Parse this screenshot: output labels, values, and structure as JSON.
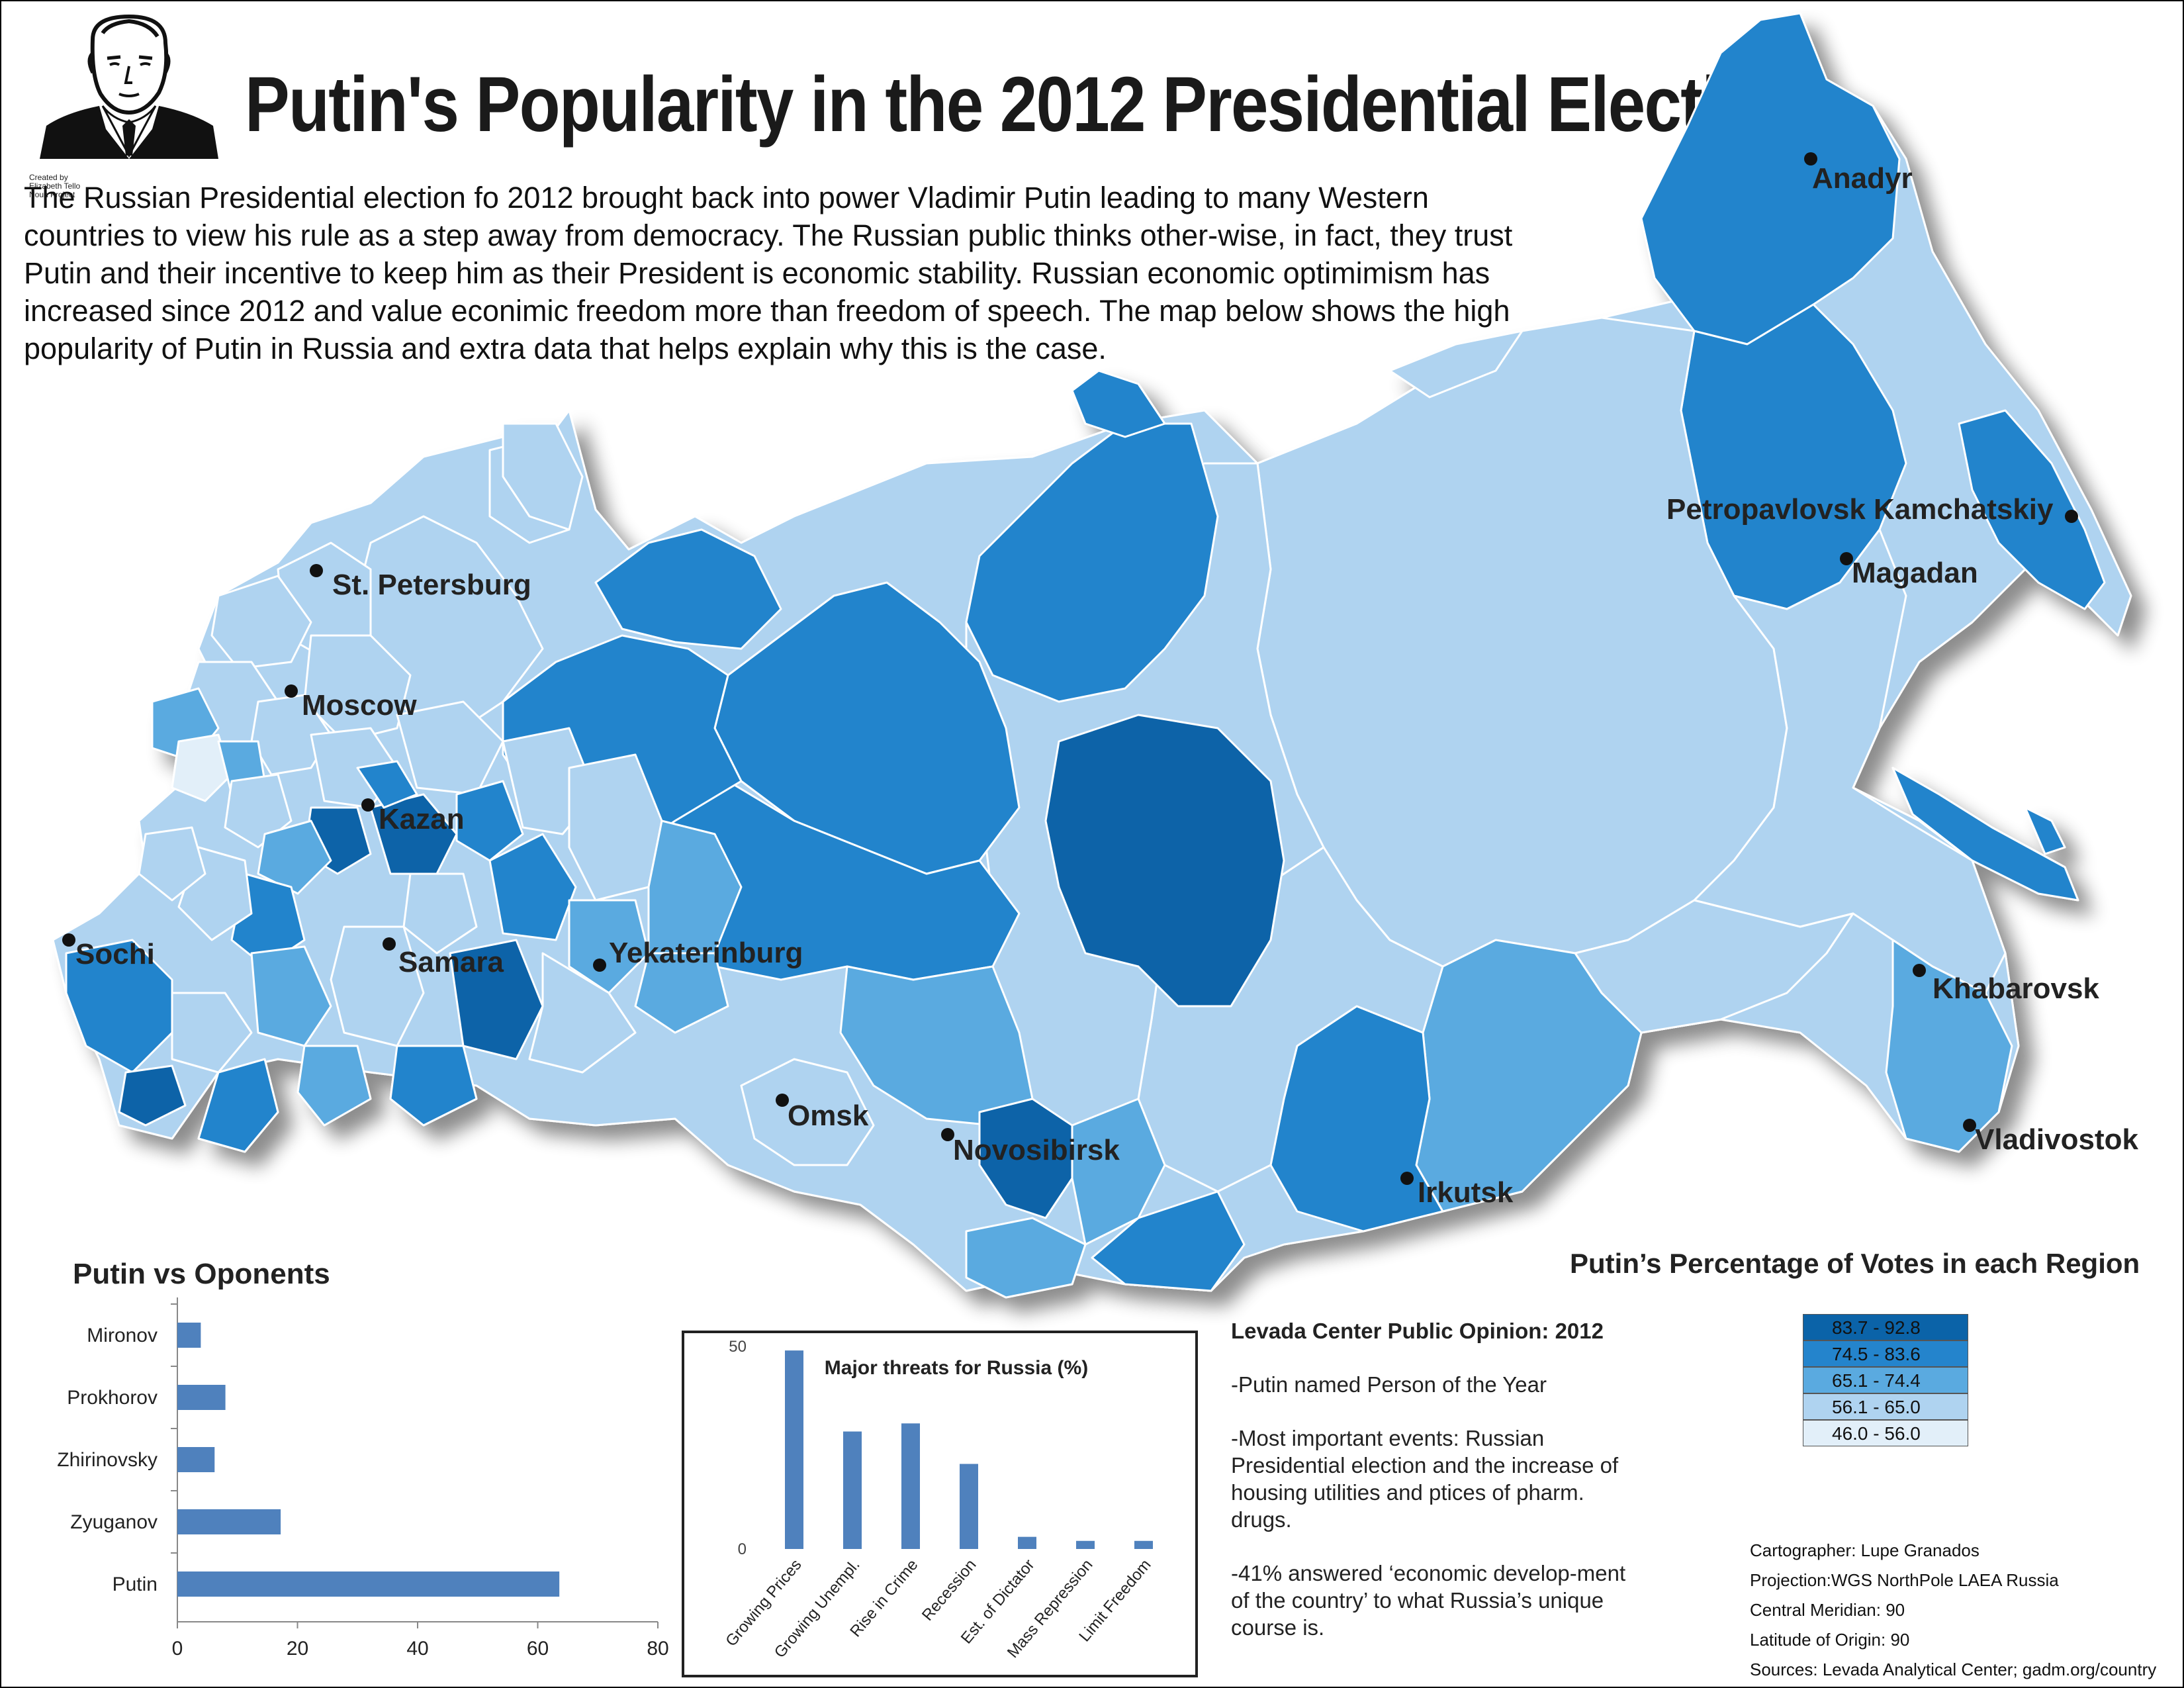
{
  "title": "Putin's Popularity in the 2012 Presidential Election",
  "credit": "Created by Elizabeth Tello Noun Project",
  "intro": "The Russian Presidential election fo 2012 brought back into power Vladimir Putin leading to many Western countries to view his rule as a step away from democracy. The Russian public thinks other-wise, in fact, they trust Putin and their incentive to keep him as their President is economic stability. Russian economic optimimism has increased since 2012 and value econimic freedom more than freedom of speech. The map below shows the high popularity of Putin in Russia and extra data that helps explain why this is the case.",
  "cities": [
    {
      "name": "St. Petersburg"
    },
    {
      "name": "Moscow"
    },
    {
      "name": "Kazan"
    },
    {
      "name": "Sochi"
    },
    {
      "name": "Samara"
    },
    {
      "name": "Yekaterinburg"
    },
    {
      "name": "Omsk"
    },
    {
      "name": "Novosibirsk"
    },
    {
      "name": "Irkutsk"
    },
    {
      "name": "Anadyr"
    },
    {
      "name": "Petropavlovsk Kamchatskiy"
    },
    {
      "name": "Magadan"
    },
    {
      "name": "Khabarovsk"
    },
    {
      "name": "Vladivostok"
    }
  ],
  "legend": {
    "title": "Putin’s Percentage of Votes in each Region",
    "classes": [
      {
        "label": "83.7 - 92.8",
        "color": "#0b63a8"
      },
      {
        "label": "74.5 - 83.6",
        "color": "#2484cc"
      },
      {
        "label": "65.1 - 74.4",
        "color": "#5aaae0"
      },
      {
        "label": "56.1 - 65.0",
        "color": "#afd3f0"
      },
      {
        "label": "46.0 - 56.0",
        "color": "#e2eff9"
      }
    ]
  },
  "levada": {
    "heading": "Levada Center Public Opinion: 2012",
    "items": [
      "-Putin named Person of the Year",
      "-Most important events: Russian Presidential election and the increase of housing utilities and ptices of pharm. drugs.",
      "-41% answered ‘economic develop-ment of the country’ to what Russia’s unique course is."
    ]
  },
  "credits": [
    "Cartographer: Lupe Granados",
    "Projection:WGS NorthPole LAEA Russia",
    "Central Meridian: 90",
    "Latitude of Origin: 90",
    "Sources: Levada Analytical Center; gadm.org/country"
  ],
  "chart_data": [
    {
      "type": "bar",
      "orientation": "horizontal",
      "title": "Putin vs Oponents",
      "categories": [
        "Mironov",
        "Prokhorov",
        "Zhirinovsky",
        "Zyuganov",
        "Putin"
      ],
      "values": [
        3.9,
        8.0,
        6.2,
        17.2,
        63.6
      ],
      "xlim": [
        0,
        80
      ],
      "xticks": [
        "0",
        "20",
        "40",
        "60",
        "80"
      ],
      "color": "#4f81bd"
    },
    {
      "type": "bar",
      "title": "Major threats for Russia (%)",
      "categories": [
        "Growing Prices",
        "Growing Unempl.",
        "Rise in Crime",
        "Recession",
        "Est. of Dictator",
        "Mass Repression",
        "Limit Freedom"
      ],
      "values": [
        49,
        29,
        31,
        21,
        3,
        2,
        2
      ],
      "ylim": [
        0,
        50
      ],
      "yticks": [
        "0",
        "50"
      ],
      "color": "#4f81bd"
    }
  ]
}
